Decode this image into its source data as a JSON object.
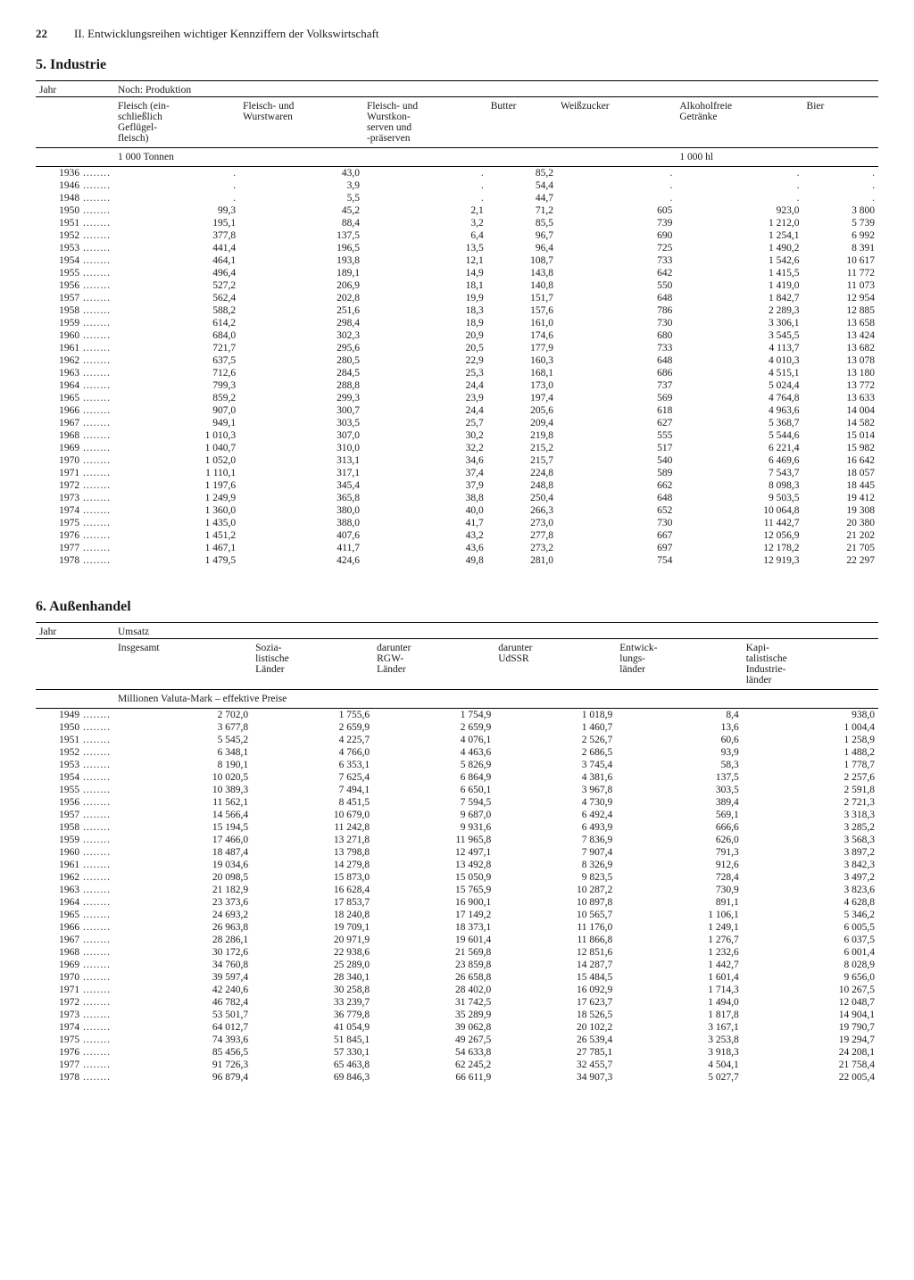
{
  "page": {
    "number": "22",
    "header": "II. Entwicklungsreihen wichtiger Kennziffern der Volkswirtschaft"
  },
  "industrie": {
    "title": "5. Industrie",
    "yearHeader": "Jahr",
    "superHeader": "Noch: Produktion",
    "columns": [
      "Fleisch (ein-\nschließlich\nGeflügel-\nfleisch)",
      "Fleisch- und\nWurstwaren",
      "Fleisch- und\nWurstkon-\nserven und\n-präserven",
      "Butter",
      "Weißzucker",
      "Alkoholfreie\nGetränke",
      "Bier"
    ],
    "unitRow": {
      "left": "1 000 Tonnen",
      "right": "1 000 hl"
    },
    "rows": [
      [
        "1936",
        ".",
        "43,0",
        ".",
        "85,2",
        ".",
        ".",
        "."
      ],
      [
        "1946",
        ".",
        "3,9",
        ".",
        "54,4",
        ".",
        ".",
        "."
      ],
      [
        "1948",
        ".",
        "5,5",
        ".",
        "44,7",
        ".",
        ".",
        "."
      ],
      [
        "1950",
        "99,3",
        "45,2",
        "2,1",
        "71,2",
        "605",
        "923,0",
        "3 800"
      ],
      [
        "1951",
        "195,1",
        "88,4",
        "3,2",
        "85,5",
        "739",
        "1 212,0",
        "5 739"
      ],
      [
        "1952",
        "377,8",
        "137,5",
        "6,4",
        "96,7",
        "690",
        "1 254,1",
        "6 992"
      ],
      [
        "1953",
        "441,4",
        "196,5",
        "13,5",
        "96,4",
        "725",
        "1 490,2",
        "8 391"
      ],
      [
        "1954",
        "464,1",
        "193,8",
        "12,1",
        "108,7",
        "733",
        "1 542,6",
        "10 617"
      ],
      [
        "1955",
        "496,4",
        "189,1",
        "14,9",
        "143,8",
        "642",
        "1 415,5",
        "11 772"
      ],
      [
        "1956",
        "527,2",
        "206,9",
        "18,1",
        "140,8",
        "550",
        "1 419,0",
        "11 073"
      ],
      [
        "1957",
        "562,4",
        "202,8",
        "19,9",
        "151,7",
        "648",
        "1 842,7",
        "12 954"
      ],
      [
        "1958",
        "588,2",
        "251,6",
        "18,3",
        "157,6",
        "786",
        "2 289,3",
        "12 885"
      ],
      [
        "1959",
        "614,2",
        "298,4",
        "18,9",
        "161,0",
        "730",
        "3 306,1",
        "13 658"
      ],
      [
        "1960",
        "684,0",
        "302,3",
        "20,9",
        "174,6",
        "680",
        "3 545,5",
        "13 424"
      ],
      [
        "1961",
        "721,7",
        "295,6",
        "20,5",
        "177,9",
        "733",
        "4 113,7",
        "13 682"
      ],
      [
        "1962",
        "637,5",
        "280,5",
        "22,9",
        "160,3",
        "648",
        "4 010,3",
        "13 078"
      ],
      [
        "1963",
        "712,6",
        "284,5",
        "25,3",
        "168,1",
        "686",
        "4 515,1",
        "13 180"
      ],
      [
        "1964",
        "799,3",
        "288,8",
        "24,4",
        "173,0",
        "737",
        "5 024,4",
        "13 772"
      ],
      [
        "1965",
        "859,2",
        "299,3",
        "23,9",
        "197,4",
        "569",
        "4 764,8",
        "13 633"
      ],
      [
        "1966",
        "907,0",
        "300,7",
        "24,4",
        "205,6",
        "618",
        "4 963,6",
        "14 004"
      ],
      [
        "1967",
        "949,1",
        "303,5",
        "25,7",
        "209,4",
        "627",
        "5 368,7",
        "14 582"
      ],
      [
        "1968",
        "1 010,3",
        "307,0",
        "30,2",
        "219,8",
        "555",
        "5 544,6",
        "15 014"
      ],
      [
        "1969",
        "1 040,7",
        "310,0",
        "32,2",
        "215,2",
        "517",
        "6 221,4",
        "15 982"
      ],
      [
        "1970",
        "1 052,0",
        "313,1",
        "34,6",
        "215,7",
        "540",
        "6 469,6",
        "16 642"
      ],
      [
        "1971",
        "1 110,1",
        "317,1",
        "37,4",
        "224,8",
        "589",
        "7 543,7",
        "18 057"
      ],
      [
        "1972",
        "1 197,6",
        "345,4",
        "37,9",
        "248,8",
        "662",
        "8 098,3",
        "18 445"
      ],
      [
        "1973",
        "1 249,9",
        "365,8",
        "38,8",
        "250,4",
        "648",
        "9 503,5",
        "19 412"
      ],
      [
        "1974",
        "1 360,0",
        "380,0",
        "40,0",
        "266,3",
        "652",
        "10 064,8",
        "19 308"
      ],
      [
        "1975",
        "1 435,0",
        "388,0",
        "41,7",
        "273,0",
        "730",
        "11 442,7",
        "20 380"
      ],
      [
        "1976",
        "1 451,2",
        "407,6",
        "43,2",
        "277,8",
        "667",
        "12 056,9",
        "21 202"
      ],
      [
        "1977",
        "1 467,1",
        "411,7",
        "43,6",
        "273,2",
        "697",
        "12 178,2",
        "21 705"
      ],
      [
        "1978",
        "1 479,5",
        "424,6",
        "49,8",
        "281,0",
        "754",
        "12 919,3",
        "22 297"
      ]
    ]
  },
  "aussenhandel": {
    "title": "6. Außenhandel",
    "yearHeader": "Jahr",
    "superHeader": "Umsatz",
    "columns": [
      "Insgesamt",
      "Sozia-\nlistische\nLänder",
      "darunter\nRGW-\nLänder",
      "darunter\nUdSSR",
      "Entwick-\nlungs-\nländer",
      "Kapi-\ntalistische\nIndustrie-\nländer"
    ],
    "unitRow": "Millionen Valuta-Mark – effektive Preise",
    "rows": [
      [
        "1949",
        "2 702,0",
        "1 755,6",
        "1 754,9",
        "1 018,9",
        "8,4",
        "938,0"
      ],
      [
        "1950",
        "3 677,8",
        "2 659,9",
        "2 659,9",
        "1 460,7",
        "13,6",
        "1 004,4"
      ],
      [
        "1951",
        "5 545,2",
        "4 225,7",
        "4 076,1",
        "2 526,7",
        "60,6",
        "1 258,9"
      ],
      [
        "1952",
        "6 348,1",
        "4 766,0",
        "4 463,6",
        "2 686,5",
        "93,9",
        "1 488,2"
      ],
      [
        "1953",
        "8 190,1",
        "6 353,1",
        "5 826,9",
        "3 745,4",
        "58,3",
        "1 778,7"
      ],
      [
        "1954",
        "10 020,5",
        "7 625,4",
        "6 864,9",
        "4 381,6",
        "137,5",
        "2 257,6"
      ],
      [
        "1955",
        "10 389,3",
        "7 494,1",
        "6 650,1",
        "3 967,8",
        "303,5",
        "2 591,8"
      ],
      [
        "1956",
        "11 562,1",
        "8 451,5",
        "7 594,5",
        "4 730,9",
        "389,4",
        "2 721,3"
      ],
      [
        "1957",
        "14 566,4",
        "10 679,0",
        "9 687,0",
        "6 492,4",
        "569,1",
        "3 318,3"
      ],
      [
        "1958",
        "15 194,5",
        "11 242,8",
        "9 931,6",
        "6 493,9",
        "666,6",
        "3 285,2"
      ],
      [
        "1959",
        "17 466,0",
        "13 271,8",
        "11 965,8",
        "7 836,9",
        "626,0",
        "3 568,3"
      ],
      [
        "1960",
        "18 487,4",
        "13 798,8",
        "12 497,1",
        "7 907,4",
        "791,3",
        "3 897,2"
      ],
      [
        "1961",
        "19 034,6",
        "14 279,8",
        "13 492,8",
        "8 326,9",
        "912,6",
        "3 842,3"
      ],
      [
        "1962",
        "20 098,5",
        "15 873,0",
        "15 050,9",
        "9 823,5",
        "728,4",
        "3 497,2"
      ],
      [
        "1963",
        "21 182,9",
        "16 628,4",
        "15 765,9",
        "10 287,2",
        "730,9",
        "3 823,6"
      ],
      [
        "1964",
        "23 373,6",
        "17 853,7",
        "16 900,1",
        "10 897,8",
        "891,1",
        "4 628,8"
      ],
      [
        "1965",
        "24 693,2",
        "18 240,8",
        "17 149,2",
        "10 565,7",
        "1 106,1",
        "5 346,2"
      ],
      [
        "1966",
        "26 963,8",
        "19 709,1",
        "18 373,1",
        "11 176,0",
        "1 249,1",
        "6 005,5"
      ],
      [
        "1967",
        "28 286,1",
        "20 971,9",
        "19 601,4",
        "11 866,8",
        "1 276,7",
        "6 037,5"
      ],
      [
        "1968",
        "30 172,6",
        "22 938,6",
        "21 569,8",
        "12 851,6",
        "1 232,6",
        "6 001,4"
      ],
      [
        "1969",
        "34 760,8",
        "25 289,0",
        "23 859,8",
        "14 287,7",
        "1 442,7",
        "8 028,9"
      ],
      [
        "1970",
        "39 597,4",
        "28 340,1",
        "26 658,8",
        "15 484,5",
        "1 601,4",
        "9 656,0"
      ],
      [
        "1971",
        "42 240,6",
        "30 258,8",
        "28 402,0",
        "16 092,9",
        "1 714,3",
        "10 267,5"
      ],
      [
        "1972",
        "46 782,4",
        "33 239,7",
        "31 742,5",
        "17 623,7",
        "1 494,0",
        "12 048,7"
      ],
      [
        "1973",
        "53 501,7",
        "36 779,8",
        "35 289,9",
        "18 526,5",
        "1 817,8",
        "14 904,1"
      ],
      [
        "1974",
        "64 012,7",
        "41 054,9",
        "39 062,8",
        "20 102,2",
        "3 167,1",
        "19 790,7"
      ],
      [
        "1975",
        "74 393,6",
        "51 845,1",
        "49 267,5",
        "26 539,4",
        "3 253,8",
        "19 294,7"
      ],
      [
        "1976",
        "85 456,5",
        "57 330,1",
        "54 633,8",
        "27 785,1",
        "3 918,3",
        "24 208,1"
      ],
      [
        "1977",
        "91 726,3",
        "65 463,8",
        "62 245,2",
        "32 455,7",
        "4 504,1",
        "21 758,4"
      ],
      [
        "1978",
        "96 879,4",
        "69 846,3",
        "66 611,9",
        "34 907,3",
        "5 027,7",
        "22 005,4"
      ]
    ]
  }
}
